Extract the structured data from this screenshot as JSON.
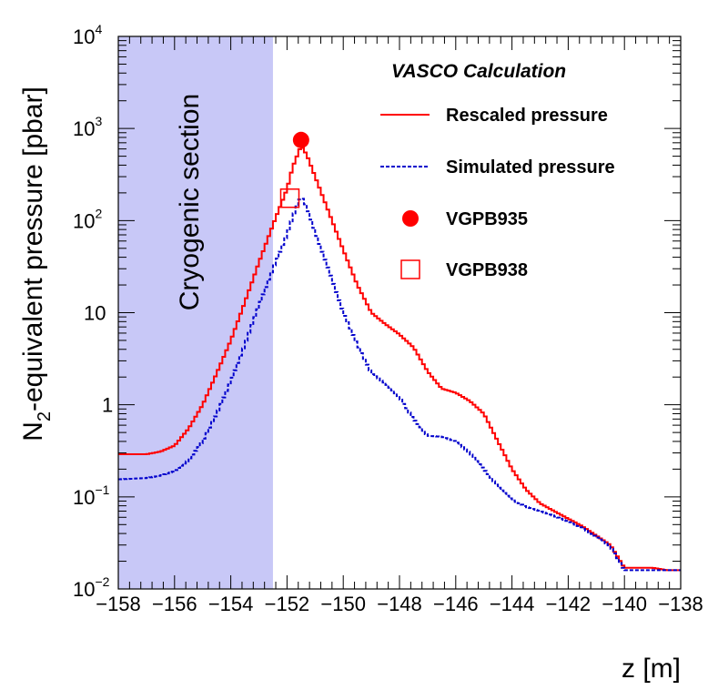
{
  "chart_data": {
    "type": "line",
    "x_scale": "linear",
    "y_scale": "log",
    "xlabel": "z [m]",
    "ylabel": {
      "prefix": "N",
      "subscript": "2",
      "suffix": "-equivalent pressure [pbar]"
    },
    "xlim": [
      -158,
      -138
    ],
    "ylim": [
      0.01,
      10000
    ],
    "x_ticks": [
      -158,
      -156,
      -154,
      -152,
      -150,
      -148,
      -146,
      -144,
      -142,
      -140,
      -138
    ],
    "x_tick_labels": [
      "−158",
      "−156",
      "−154",
      "−152",
      "−150",
      "−148",
      "−146",
      "−144",
      "−142",
      "−140",
      "−138"
    ],
    "y_ticks": [
      {
        "value": 0.01,
        "base": "10",
        "exp": "−2"
      },
      {
        "value": 0.1,
        "base": "10",
        "exp": "−1"
      },
      {
        "value": 1,
        "base": "1",
        "exp": ""
      },
      {
        "value": 10,
        "base": "10",
        "exp": ""
      },
      {
        "value": 100,
        "base": "10",
        "exp": "2"
      },
      {
        "value": 1000,
        "base": "10",
        "exp": "3"
      },
      {
        "value": 10000,
        "base": "10",
        "exp": "4"
      }
    ],
    "shaded_region": {
      "x_from": -158,
      "x_to": -152.5,
      "label": "Cryogenic section",
      "color": "#c8c8f7"
    },
    "legend_title": "VASCO Calculation",
    "series": [
      {
        "name": "Rescaled pressure",
        "color": "#ff0000",
        "style": "solid",
        "x": [
          -158,
          -157,
          -156.5,
          -156,
          -155.5,
          -155,
          -154.5,
          -154,
          -153.5,
          -153,
          -152.5,
          -152,
          -151.8,
          -151.5,
          -151.3,
          -151,
          -150.5,
          -150,
          -149.5,
          -149,
          -148.5,
          -148,
          -147.5,
          -147,
          -146.5,
          -146,
          -145.5,
          -145,
          -144.5,
          -144,
          -143.5,
          -143,
          -142.5,
          -142,
          -141.5,
          -141,
          -140.5,
          -140,
          -139.5,
          -139,
          -138.5,
          -138
        ],
        "values": [
          0.29,
          0.29,
          0.31,
          0.36,
          0.55,
          1.0,
          2.2,
          5.0,
          13,
          35,
          90,
          220,
          380,
          650,
          520,
          300,
          120,
          48,
          20,
          10,
          7.5,
          5.8,
          4.2,
          2.3,
          1.5,
          1.35,
          1.1,
          0.8,
          0.4,
          0.2,
          0.12,
          0.085,
          0.07,
          0.058,
          0.048,
          0.038,
          0.03,
          0.017,
          0.017,
          0.017,
          0.016,
          0.016
        ]
      },
      {
        "name": "Simulated pressure",
        "color": "#0000cc",
        "style": "dashed",
        "x": [
          -158,
          -157,
          -156.5,
          -156,
          -155.5,
          -155,
          -154.5,
          -154,
          -153.5,
          -153,
          -152.5,
          -152,
          -151.8,
          -151.5,
          -151.3,
          -151,
          -150.5,
          -150,
          -149.5,
          -149,
          -148.5,
          -148,
          -147.5,
          -147,
          -146.5,
          -146,
          -145.5,
          -145,
          -144.5,
          -144,
          -143.5,
          -143,
          -142.5,
          -142,
          -141.5,
          -141,
          -140.5,
          -140,
          -139.5,
          -139,
          -138.5,
          -138
        ],
        "values": [
          0.155,
          0.16,
          0.17,
          0.19,
          0.25,
          0.4,
          0.8,
          1.8,
          4.5,
          12,
          30,
          70,
          110,
          185,
          140,
          75,
          28,
          10,
          4.5,
          2.2,
          1.7,
          1.2,
          0.7,
          0.46,
          0.45,
          0.4,
          0.3,
          0.2,
          0.13,
          0.093,
          0.078,
          0.07,
          0.062,
          0.054,
          0.046,
          0.037,
          0.029,
          0.016,
          0.016,
          0.016,
          0.016,
          0.016
        ]
      }
    ],
    "points": [
      {
        "name": "VGPB935",
        "x": -151.5,
        "y": 750,
        "marker": "filled-circle",
        "color": "#ff0000"
      },
      {
        "name": "VGPB938",
        "x": -151.9,
        "y": 175,
        "marker": "open-square",
        "color": "#ff0000"
      }
    ]
  }
}
